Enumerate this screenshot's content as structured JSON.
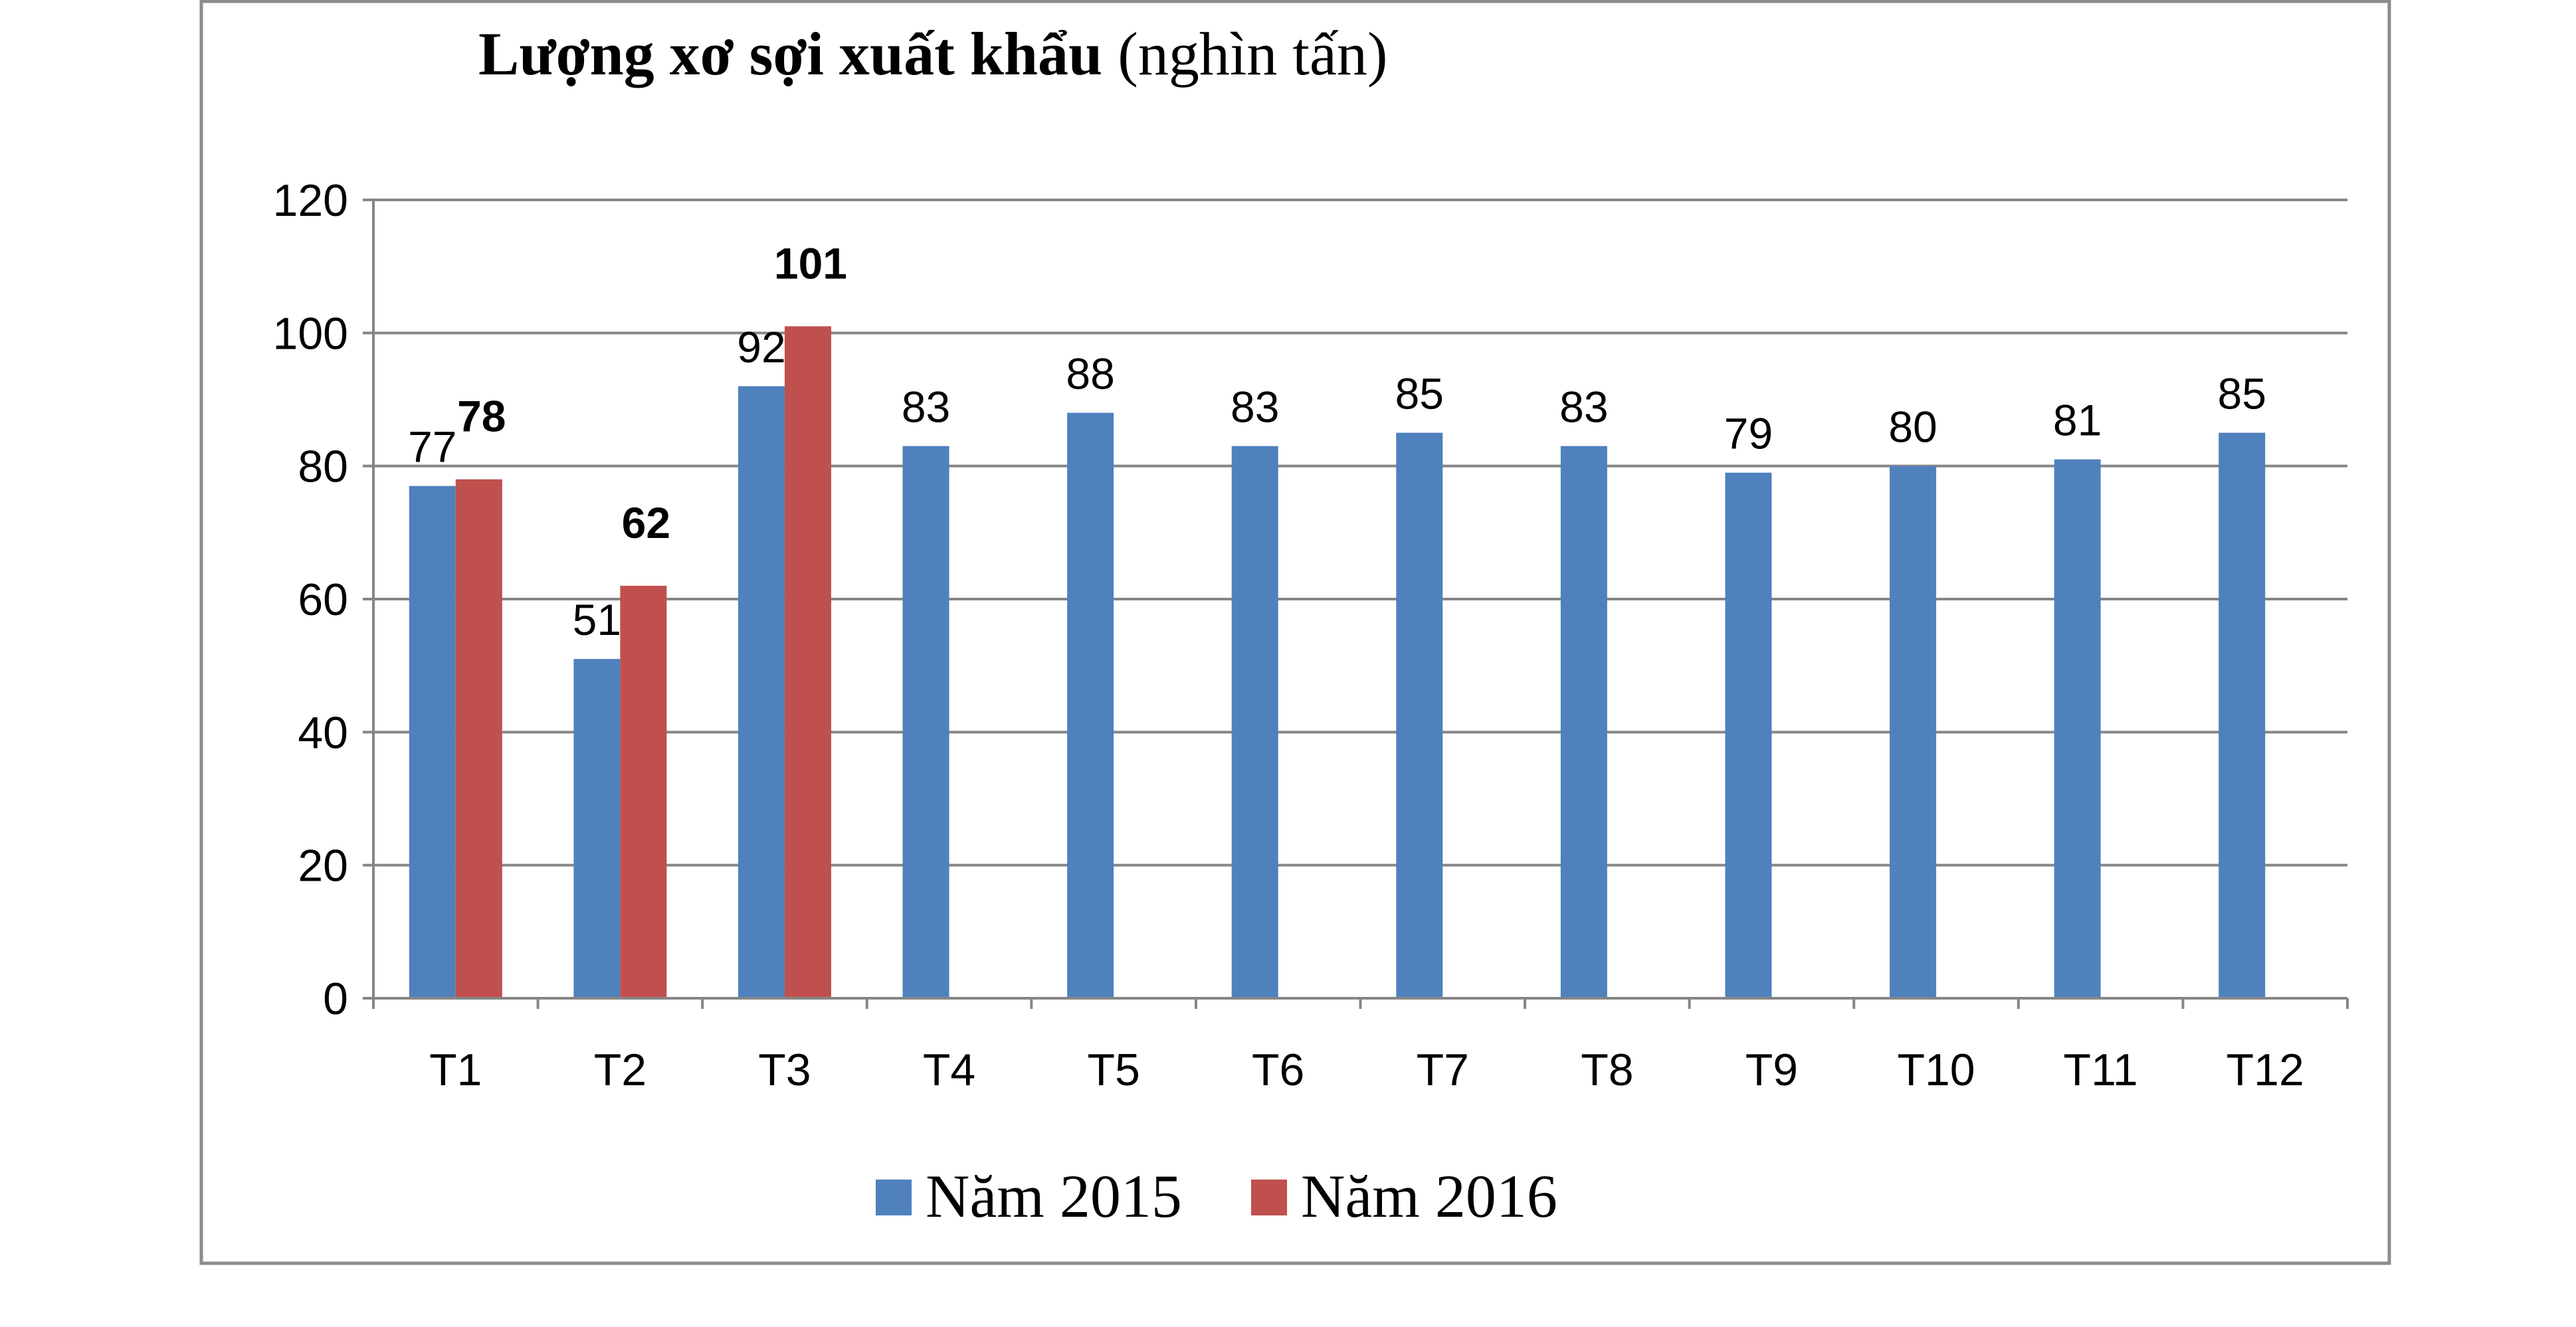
{
  "chart_data": {
    "type": "bar",
    "title_bold": "Lượng xơ sợi xuất khẩu",
    "title_rest": " (nghìn tấn)",
    "categories": [
      "T1",
      "T2",
      "T3",
      "T4",
      "T5",
      "T6",
      "T7",
      "T8",
      "T9",
      "T10",
      "T11",
      "T12"
    ],
    "series": [
      {
        "name": "Năm 2015",
        "color": "#4F81BD",
        "values": [
          77,
          51,
          92,
          83,
          88,
          83,
          85,
          83,
          79,
          80,
          81,
          85
        ],
        "labels_bold": false
      },
      {
        "name": "Năm 2016",
        "color": "#C0504D",
        "values": [
          78,
          62,
          101,
          null,
          null,
          null,
          null,
          null,
          null,
          null,
          null,
          null
        ],
        "labels_bold": true
      }
    ],
    "ylim": [
      0,
      120
    ],
    "yticks": [
      0,
      20,
      40,
      60,
      80,
      100,
      120
    ],
    "grid": true,
    "legend": "bottom",
    "xlabel": "",
    "ylabel": ""
  }
}
